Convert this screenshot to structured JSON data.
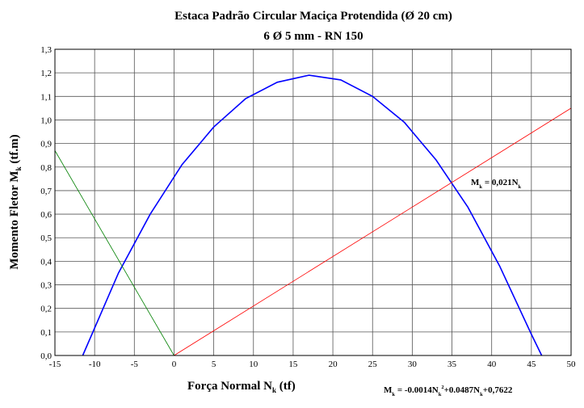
{
  "chart_data": {
    "type": "line",
    "title": "Estaca Padrão Circular Maciça Protendida (Ø 20 cm)",
    "subtitle": "6 Ø 5 mm - RN 150",
    "x_label": [
      {
        "text": "Força Normal N"
      },
      {
        "text": "k",
        "shift": "sub"
      },
      {
        "text": " (tf)"
      }
    ],
    "y_label": [
      {
        "text": "Momento Fletor M"
      },
      {
        "text": "k",
        "shift": "sub"
      },
      {
        "text": " (tf.m)"
      }
    ],
    "annotations": [
      [
        {
          "text": "M"
        },
        {
          "text": "k",
          "shift": "sub"
        },
        {
          "text": " = 0,021N"
        },
        {
          "text": "k",
          "shift": "sub"
        }
      ],
      [
        {
          "text": "M"
        },
        {
          "text": "k",
          "shift": "sub"
        },
        {
          "text": " = -0.0014N"
        },
        {
          "text": "k",
          "shift": "sub"
        },
        {
          "text": "2",
          "shift": "sup"
        },
        {
          "text": "+0.0487N"
        },
        {
          "text": "k",
          "shift": "sub"
        },
        {
          "text": "+0,7622"
        }
      ]
    ],
    "xlim": [
      -15,
      50
    ],
    "xticks": [
      -15,
      -10,
      -5,
      0,
      5,
      10,
      15,
      20,
      25,
      30,
      35,
      40,
      45,
      50
    ],
    "ylim": [
      0,
      1.3
    ],
    "yticks": [
      {
        "value": 0,
        "label": "0,0"
      },
      {
        "value": 0.1,
        "label": "0,1"
      },
      {
        "value": 0.2,
        "label": "0,2"
      },
      {
        "value": 0.3,
        "label": "0,3"
      },
      {
        "value": 0.4,
        "label": "0,4"
      },
      {
        "value": 0.5,
        "label": "0,5"
      },
      {
        "value": 0.6,
        "label": "0,6"
      },
      {
        "value": 0.7,
        "label": "0,7"
      },
      {
        "value": 0.8,
        "label": "0,8"
      },
      {
        "value": 0.9,
        "label": "0,9"
      },
      {
        "value": 1.0,
        "label": "1,0"
      },
      {
        "value": 1.1,
        "label": "1,1"
      },
      {
        "value": 1.2,
        "label": "1,2"
      },
      {
        "value": 1.3,
        "label": "1,3"
      }
    ],
    "grid": true,
    "series": [
      {
        "color": "#0000ff",
        "x": [
          -11.5,
          -7,
          -3,
          1,
          5,
          9,
          13,
          17,
          21,
          25,
          29,
          33,
          37,
          41,
          45,
          46.3
        ],
        "values": [
          0,
          0.35,
          0.6,
          0.81,
          0.97,
          1.09,
          1.16,
          1.19,
          1.17,
          1.1,
          0.99,
          0.83,
          0.63,
          0.38,
          0.09,
          0
        ]
      },
      {
        "color": "#ff0000",
        "x": [
          0,
          50
        ],
        "values": [
          0,
          1.05
        ]
      },
      {
        "color": "#008000",
        "x": [
          -15,
          0
        ],
        "values": [
          0.87,
          0
        ]
      }
    ]
  }
}
